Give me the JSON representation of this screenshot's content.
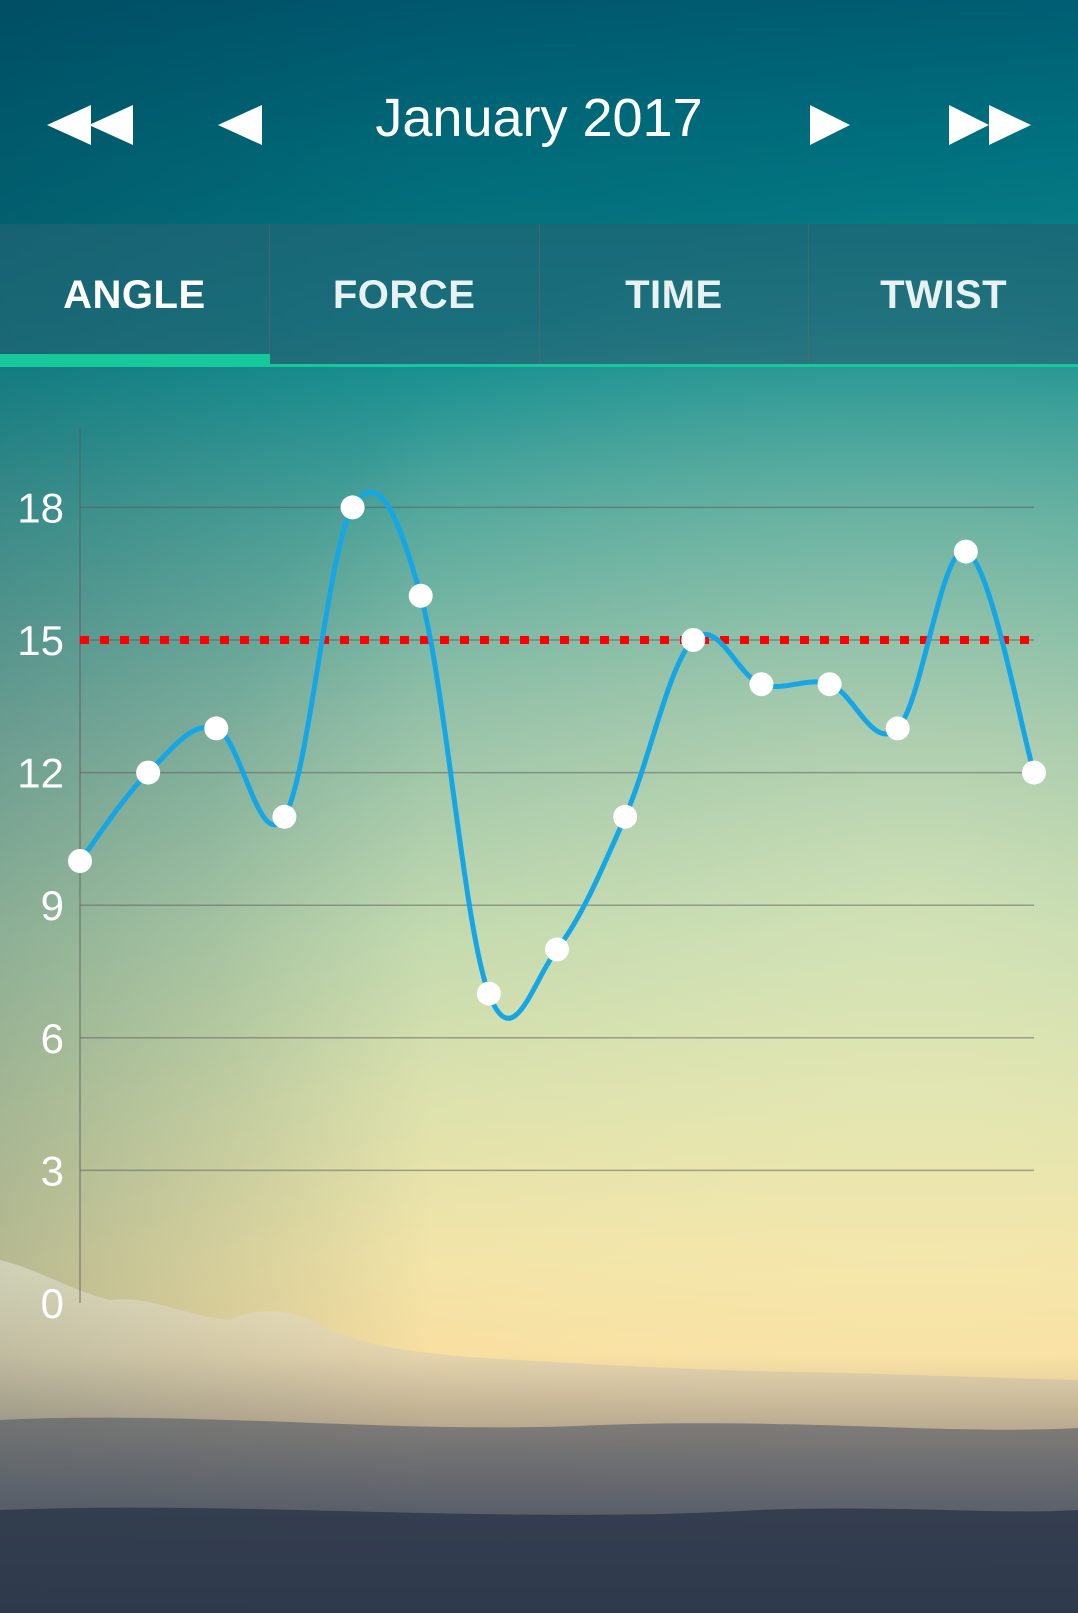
{
  "header": {
    "title": "January 2017",
    "first_icon": "double-left-arrow-icon",
    "prev_icon": "left-arrow-icon",
    "next_icon": "right-arrow-icon",
    "last_icon": "double-right-arrow-icon"
  },
  "tabs": [
    {
      "label": "ANGLE",
      "active": true
    },
    {
      "label": "FORCE",
      "active": false
    },
    {
      "label": "TIME",
      "active": false
    },
    {
      "label": "TWIST",
      "active": false
    }
  ],
  "colors": {
    "accent": "#17c99a",
    "line": "#16a6e6",
    "threshold": "#ff0000",
    "point": "#ffffff"
  },
  "chart_data": {
    "type": "line",
    "title": "",
    "xlabel": "",
    "ylabel": "",
    "ylim": [
      0,
      19.8
    ],
    "yticks": [
      0,
      3,
      6,
      9,
      12,
      15,
      18
    ],
    "ytick_labels": [
      "0",
      "3",
      "6",
      "9",
      "12",
      "15",
      "18"
    ],
    "grid": true,
    "x": [
      1,
      2,
      3,
      4,
      5,
      6,
      7,
      8,
      9,
      10,
      11,
      12,
      13,
      14,
      15
    ],
    "series": [
      {
        "values": [
          10,
          12,
          13,
          11,
          18,
          16,
          7,
          8,
          11,
          15,
          14,
          14,
          13,
          17,
          12
        ]
      }
    ],
    "threshold": 15
  }
}
